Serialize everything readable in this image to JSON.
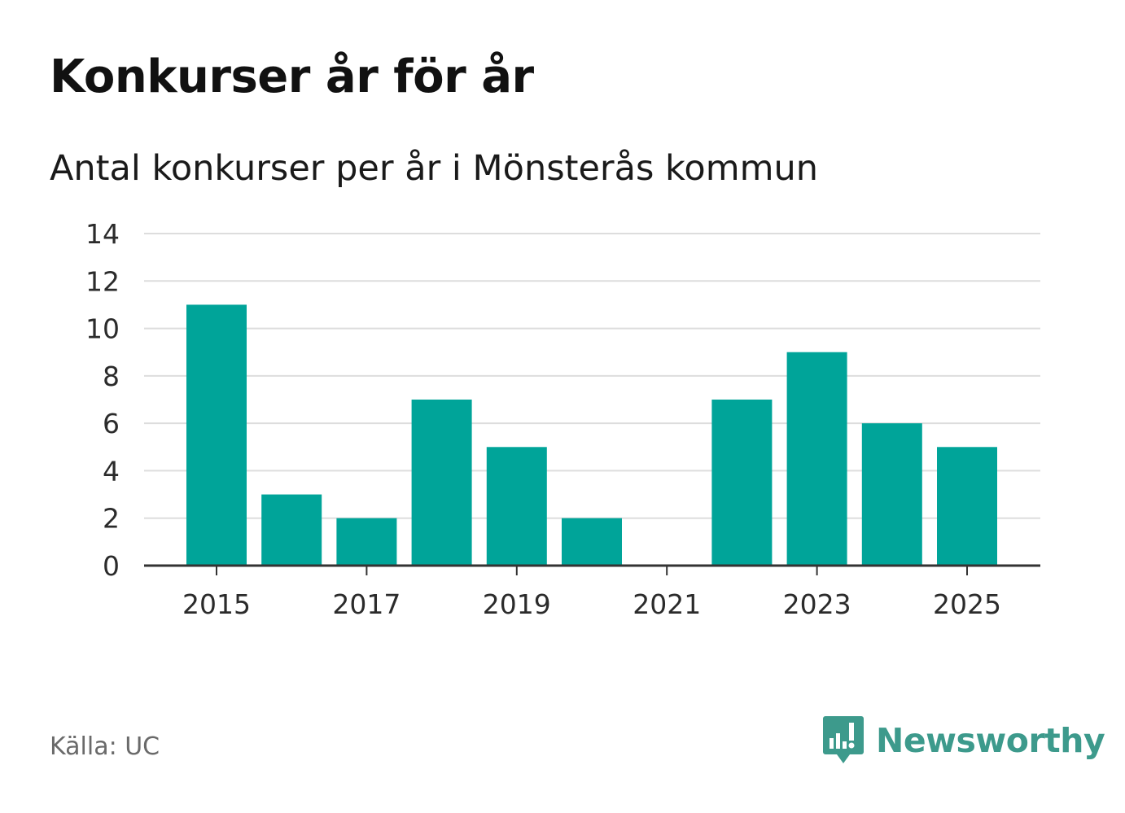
{
  "title": "Konkurser år för år",
  "subtitle": "Antal konkurser per år i Mönsterås kommun",
  "source": "Källa: UC",
  "brand": {
    "name": "Newsworthy",
    "icon": "newsworthy-logo-icon",
    "color": "#3d9a8c"
  },
  "chart_data": {
    "type": "bar",
    "categories": [
      "2015",
      "2016",
      "2017",
      "2018",
      "2019",
      "2020",
      "2021",
      "2022",
      "2023",
      "2024",
      "2025"
    ],
    "values": [
      11,
      3,
      2,
      7,
      5,
      2,
      0,
      7,
      9,
      6,
      5
    ],
    "x_tick_labels": [
      "2015",
      "2017",
      "2019",
      "2021",
      "2023",
      "2025"
    ],
    "y_tick_labels": [
      "0",
      "2",
      "4",
      "6",
      "8",
      "10",
      "12",
      "14"
    ],
    "ylim": [
      0,
      14
    ],
    "grid": true,
    "bar_color": "#00a499",
    "grid_color": "#dddddd",
    "axis_color": "#333333"
  }
}
